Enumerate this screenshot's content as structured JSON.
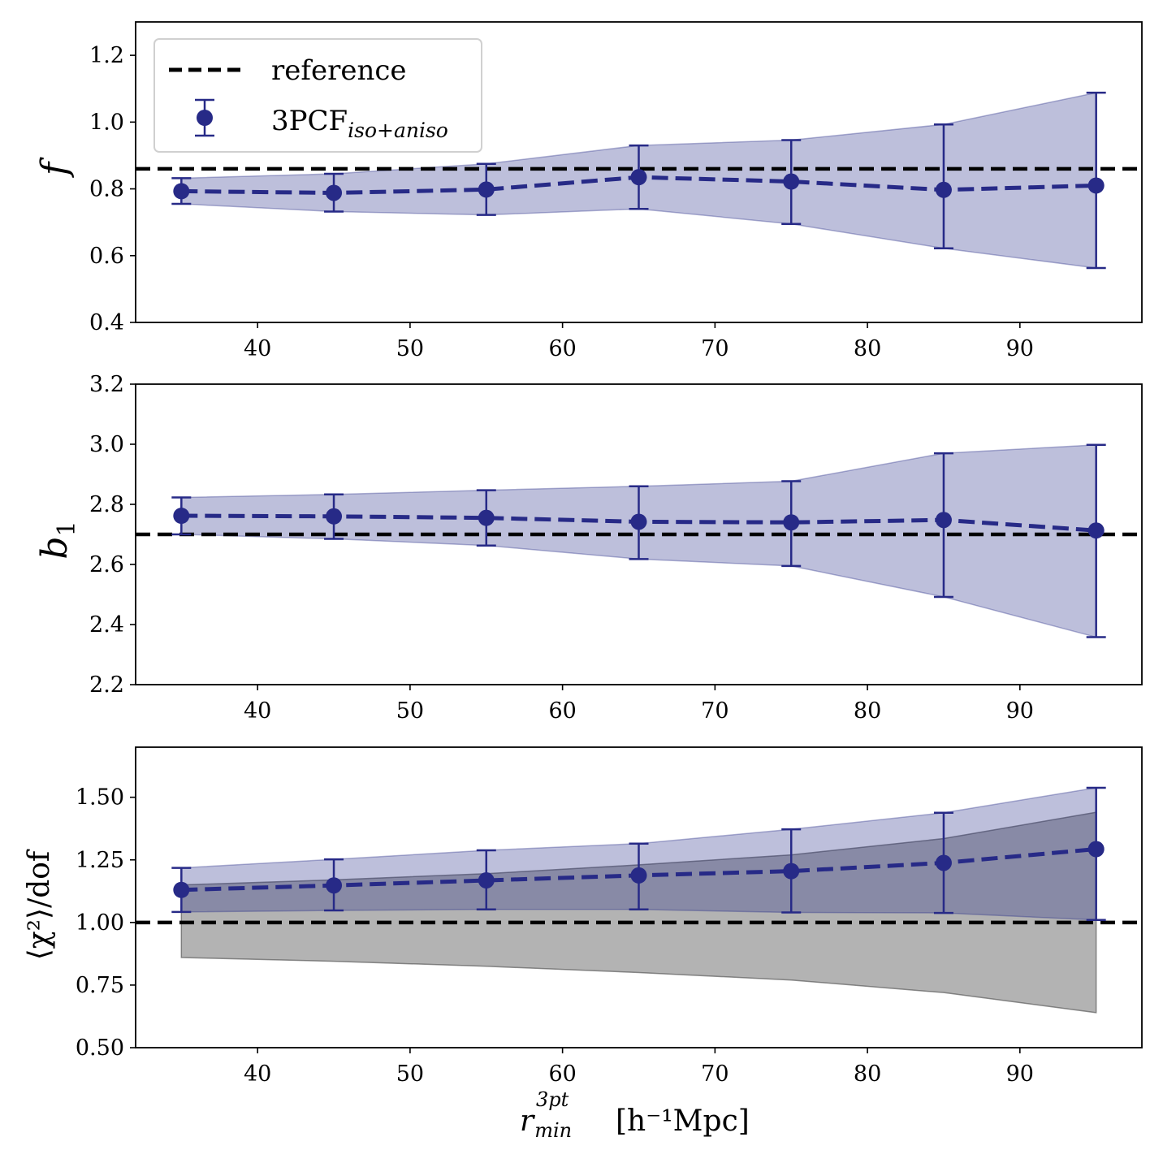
{
  "chart_data": [
    {
      "type": "line",
      "panel": "top",
      "ylabel": "f",
      "xlabel": "",
      "xlim": [
        32,
        98
      ],
      "ylim": [
        0.4,
        1.3
      ],
      "xticks": [
        40,
        50,
        60,
        70,
        80,
        90
      ],
      "yticks": [
        "0.4",
        "0.6",
        "0.8",
        "1.0",
        "1.2"
      ],
      "reference": 0.86,
      "series": [
        {
          "name": "3PCF",
          "x": [
            35,
            45,
            55,
            65,
            75,
            85,
            95
          ],
          "y": [
            0.793,
            0.788,
            0.798,
            0.835,
            0.822,
            0.797,
            0.81
          ],
          "yerr_low": [
            0.755,
            0.732,
            0.722,
            0.74,
            0.695,
            0.622,
            0.563
          ],
          "yerr_high": [
            0.832,
            0.845,
            0.875,
            0.93,
            0.946,
            0.993,
            1.088
          ]
        }
      ]
    },
    {
      "type": "line",
      "panel": "middle",
      "ylabel": "b",
      "ylabel_sub": "1",
      "xlabel": "",
      "xlim": [
        32,
        98
      ],
      "ylim": [
        2.2,
        3.2
      ],
      "xticks": [
        40,
        50,
        60,
        70,
        80,
        90
      ],
      "yticks": [
        "2.2",
        "2.4",
        "2.6",
        "2.8",
        "3.0",
        "3.2"
      ],
      "reference": 2.7,
      "series": [
        {
          "name": "3PCF",
          "x": [
            35,
            45,
            55,
            65,
            75,
            85,
            95
          ],
          "y": [
            2.762,
            2.76,
            2.755,
            2.742,
            2.74,
            2.748,
            2.713
          ],
          "yerr_low": [
            2.7,
            2.685,
            2.663,
            2.618,
            2.595,
            2.492,
            2.358
          ],
          "yerr_high": [
            2.823,
            2.833,
            2.847,
            2.86,
            2.877,
            2.97,
            2.998
          ]
        }
      ]
    },
    {
      "type": "line",
      "panel": "bottom",
      "ylabel": "⟨χ²⟩/dof",
      "xlabel": "r",
      "xlabel_sup": "3pt",
      "xlabel_sub": "min",
      "xlabel_units": "[h⁻¹Mpc]",
      "xlim": [
        32,
        98
      ],
      "ylim": [
        0.5,
        1.7
      ],
      "xticks": [
        40,
        50,
        60,
        70,
        80,
        90
      ],
      "yticks": [
        "0.50",
        "0.75",
        "1.00",
        "1.25",
        "1.50"
      ],
      "reference": 1.0,
      "series": [
        {
          "name": "3PCF",
          "x": [
            35,
            45,
            55,
            65,
            75,
            85,
            95
          ],
          "y": [
            1.13,
            1.148,
            1.168,
            1.188,
            1.205,
            1.238,
            1.293
          ],
          "yerr_low": [
            1.042,
            1.048,
            1.052,
            1.052,
            1.04,
            1.038,
            1.01
          ],
          "yerr_high": [
            1.218,
            1.252,
            1.288,
            1.315,
            1.372,
            1.438,
            1.538
          ]
        }
      ],
      "expected_band": {
        "x": [
          35,
          45,
          55,
          65,
          75,
          85,
          95
        ],
        "low": [
          0.86,
          0.845,
          0.825,
          0.8,
          0.77,
          0.72,
          0.64
        ],
        "high": [
          1.15,
          1.17,
          1.195,
          1.23,
          1.27,
          1.335,
          1.44
        ]
      }
    }
  ],
  "legend": {
    "reference_label": "reference",
    "series_label": "3PCF",
    "series_sub": "iso+aniso",
    "placement": "top-left"
  },
  "colors": {
    "series": "#272a87",
    "band": "#262a88",
    "gray_band": "#6e6e6e",
    "reference": "#000000"
  }
}
